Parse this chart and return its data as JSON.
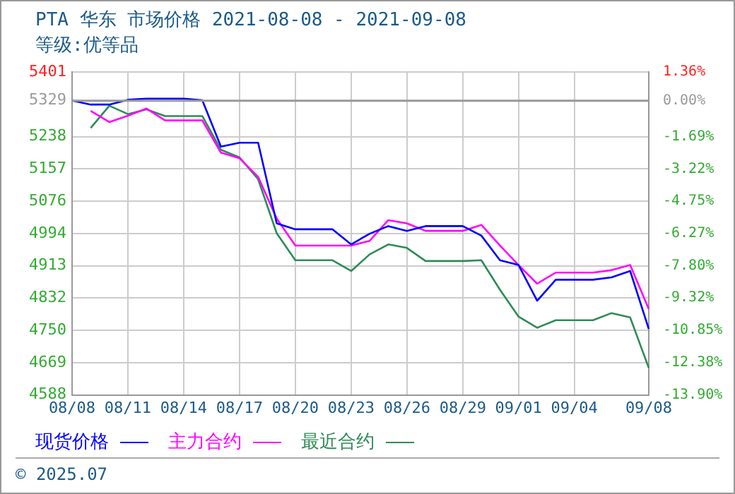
{
  "chart_data": {
    "type": "line",
    "title": "PTA 华东 市场价格 2021-08-08 - 2021-09-08",
    "subtitle": "等级:优等品",
    "categories": [
      "08/08",
      null,
      null,
      "08/11",
      null,
      null,
      "08/14",
      null,
      null,
      "08/17",
      null,
      null,
      "08/20",
      null,
      null,
      "08/23",
      null,
      null,
      "08/26",
      null,
      null,
      "08/29",
      null,
      null,
      "09/01",
      null,
      null,
      "09/04",
      null,
      null,
      null,
      "09/08"
    ],
    "series": [
      {
        "name": "现货价格",
        "color": "#0000ff",
        "values": [
          5329,
          5319,
          5319,
          5331,
          5334,
          5334,
          5334,
          5330,
          5213,
          5223,
          5223,
          5020,
          5005,
          5005,
          5005,
          4967,
          4994,
          5013,
          5001,
          5013,
          5013,
          5013,
          4989,
          4927,
          4915,
          4825,
          4878,
          4878,
          4878,
          4884,
          4900,
          4754
        ]
      },
      {
        "name": "主力合约",
        "color": "#ff00ff",
        "values": [
          null,
          5303,
          5275,
          5291,
          5309,
          5279,
          5279,
          5279,
          5198,
          5184,
          5137,
          5032,
          4964,
          4964,
          4964,
          4964,
          4976,
          5028,
          5020,
          5001,
          5001,
          5001,
          5016,
          4964,
          4915,
          4868,
          4896,
          4896,
          4896,
          4902,
          4915,
          4804
        ]
      },
      {
        "name": "最近合约",
        "color": "#2e8b57",
        "values": [
          null,
          5260,
          5316,
          5295,
          5307,
          5290,
          5290,
          5290,
          5205,
          5186,
          5131,
          4995,
          4927,
          4927,
          4927,
          4900,
          4942,
          4967,
          4958,
          4925,
          4925,
          4925,
          4927,
          4853,
          4785,
          4757,
          4776,
          4776,
          4776,
          4794,
          4783,
          4656
        ]
      }
    ],
    "ylim": [
      4588,
      5401
    ],
    "yticks": [
      4588,
      4669,
      4750,
      4832,
      4913,
      4994,
      5076,
      5157,
      5238,
      5329,
      5401
    ],
    "y2lim": [
      -13.9,
      1.36
    ],
    "y2ticks": [
      {
        "value": -13.9,
        "label": "-13.90%"
      },
      {
        "value": -12.38,
        "label": "-12.38%"
      },
      {
        "value": -10.85,
        "label": "-10.85%"
      },
      {
        "value": -9.32,
        "label": "-9.32%"
      },
      {
        "value": -7.8,
        "label": "-7.80%"
      },
      {
        "value": -6.27,
        "label": "-6.27%"
      },
      {
        "value": -4.75,
        "label": "-4.75%"
      },
      {
        "value": -3.22,
        "label": "-3.22%"
      },
      {
        "value": -1.69,
        "label": "-1.69%"
      },
      {
        "value": 0,
        "label": "0.00%"
      },
      {
        "value": 1.36,
        "label": "1.36%"
      }
    ],
    "ref_lines": [
      {
        "axis": "y2",
        "value": 0,
        "color": "#999999"
      }
    ],
    "grid": true,
    "legend": "bottom",
    "marker": "none",
    "line_style": "solid",
    "annotations": [
      "© 2025.07"
    ]
  }
}
